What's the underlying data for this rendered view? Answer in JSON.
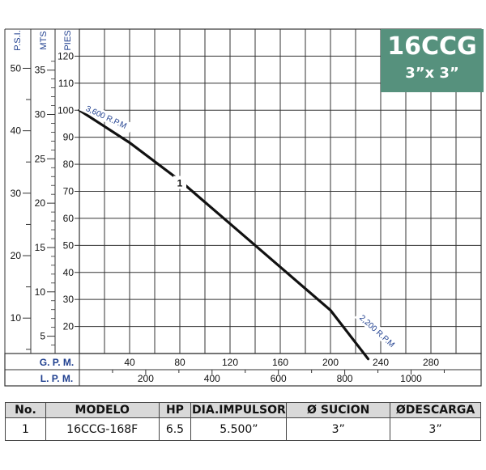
{
  "chart_data": {
    "type": "line",
    "title": "16CCG",
    "subtitle": "3”x 3”",
    "left_axes": [
      {
        "label": "P.S.I.",
        "ticks": [
          10,
          20,
          30,
          40,
          50
        ]
      },
      {
        "label": "MTS",
        "ticks": [
          5,
          10,
          15,
          20,
          25,
          30,
          35
        ]
      },
      {
        "label": "PIES",
        "ticks": [
          20,
          30,
          40,
          50,
          60,
          70,
          80,
          90,
          100,
          110,
          120
        ]
      }
    ],
    "bottom_axes": [
      {
        "label": "G. P. M.",
        "ticks": [
          40,
          80,
          120,
          160,
          200,
          240,
          280
        ]
      },
      {
        "label": "L. P. M.",
        "ticks": [
          200,
          400,
          600,
          800,
          1000
        ]
      }
    ],
    "xlim_gpm": [
      0,
      320
    ],
    "ylim_pies": [
      10,
      130
    ],
    "grid": true,
    "series": [
      {
        "name": "1",
        "x": [
          0,
          40,
          80,
          120,
          160,
          200,
          230
        ],
        "y": [
          100,
          88,
          74,
          58,
          42,
          26,
          8
        ]
      }
    ],
    "annotations": [
      {
        "text": "3,600 R.P.M",
        "x": 20,
        "y": 96
      },
      {
        "text": "2,200 R.P.M",
        "x": 222,
        "y": 13
      }
    ],
    "curve_label_position": {
      "x": 80,
      "y": 73
    },
    "colors": {
      "curve": "#111111",
      "axis_label": "#1f3f8f",
      "header_bg": "#56917d",
      "grid": "#333333"
    }
  },
  "table": {
    "headers": [
      "No.",
      "MODELO",
      "HP",
      "DIA.IMPULSOR",
      "Ø SUCION",
      "ØDESCARGA"
    ],
    "rows": [
      [
        "1",
        "16CCG-168F",
        "6.5",
        "5.500”",
        "3”",
        "3”"
      ]
    ]
  }
}
